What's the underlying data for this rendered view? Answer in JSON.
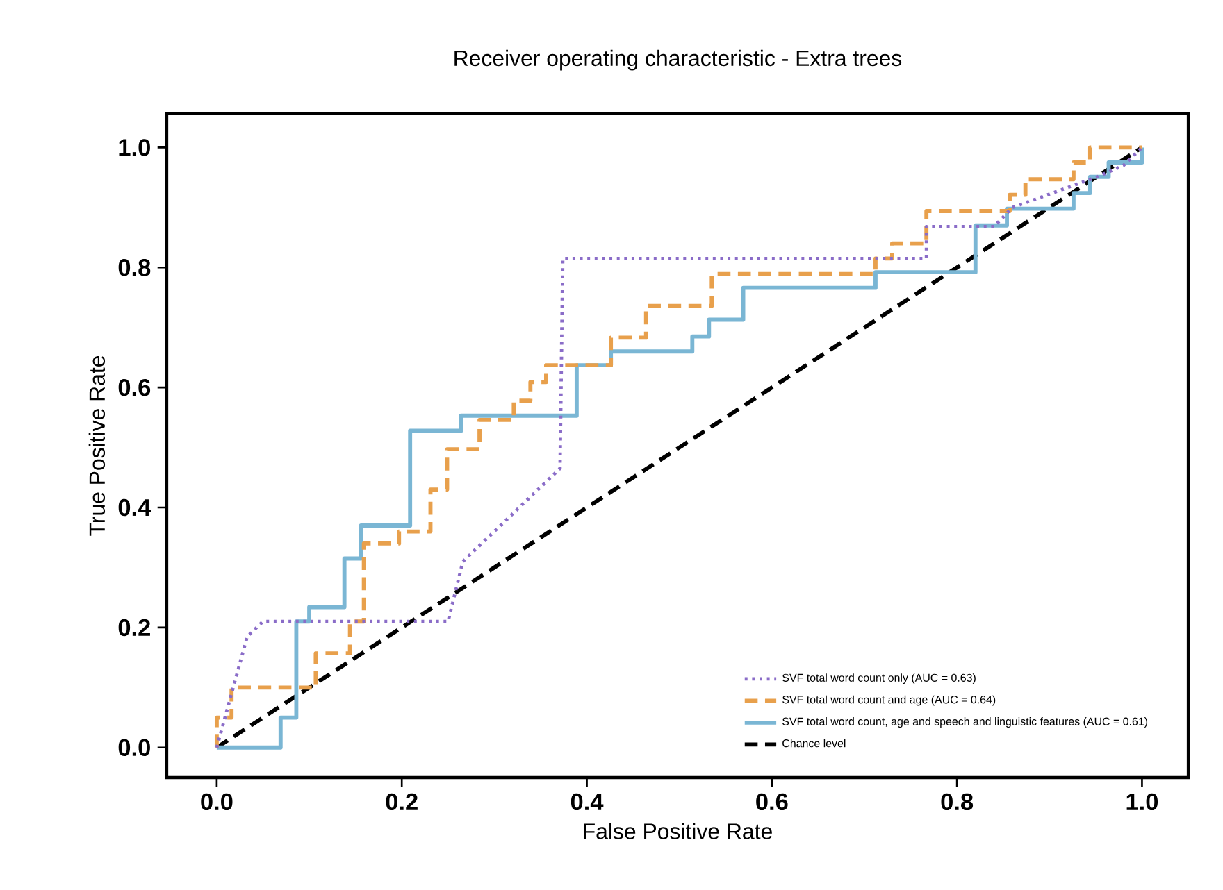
{
  "chart_data": {
    "type": "line",
    "title": "Receiver operating characteristic - Extra trees",
    "xlabel": "False Positive Rate",
    "ylabel": "True Positive Rate",
    "xlim": [
      -0.054,
      1.05
    ],
    "ylim": [
      -0.05,
      1.056
    ],
    "xticks": [
      {
        "value": 0,
        "label": "0.0"
      },
      {
        "value": 0.2,
        "label": "0.2"
      },
      {
        "value": 0.4,
        "label": "0.4"
      },
      {
        "value": 0.6,
        "label": "0.6"
      },
      {
        "value": 0.8,
        "label": "0.8"
      },
      {
        "value": 1,
        "label": "1.0"
      }
    ],
    "yticks": [
      {
        "value": 0,
        "label": "0.0"
      },
      {
        "value": 0.2,
        "label": "0.2"
      },
      {
        "value": 0.4,
        "label": "0.4"
      },
      {
        "value": 0.6,
        "label": "0.6"
      },
      {
        "value": 0.8,
        "label": "0.8"
      },
      {
        "value": 1,
        "label": "1.0"
      }
    ],
    "legend": "bottom right",
    "marker": "none",
    "grid": false,
    "series": [
      {
        "name": "SVF total word count only (AUC = 0.63)",
        "color": "#8a6cc8",
        "line_style": "dotted",
        "x": [
          0,
          0.033,
          0.05,
          0.25,
          0.25,
          0.266,
          0.371,
          0.374,
          0.767,
          0.767,
          0.84,
          0.86,
          0.95,
          0.98,
          1
        ],
        "values": [
          0,
          0.185,
          0.21,
          0.21,
          0.21,
          0.31,
          0.465,
          0.815,
          0.815,
          0.868,
          0.868,
          0.9,
          0.95,
          0.97,
          1
        ]
      },
      {
        "name": "SVF total word count and age (AUC = 0.64)",
        "color": "#e8a04c",
        "line_style": "dashed",
        "x": [
          0,
          0,
          0.016,
          0.016,
          0.107,
          0.107,
          0.144,
          0.144,
          0.159,
          0.159,
          0.197,
          0.197,
          0.231,
          0.231,
          0.249,
          0.249,
          0.284,
          0.284,
          0.321,
          0.321,
          0.339,
          0.339,
          0.356,
          0.356,
          0.426,
          0.426,
          0.464,
          0.464,
          0.535,
          0.535,
          0.712,
          0.712,
          0.73,
          0.73,
          0.767,
          0.767,
          0.857,
          0.857,
          0.874,
          0.874,
          0.926,
          0.926,
          0.944,
          0.944,
          1
        ],
        "values": [
          0,
          0.05,
          0.05,
          0.1,
          0.1,
          0.157,
          0.157,
          0.21,
          0.21,
          0.34,
          0.34,
          0.36,
          0.36,
          0.43,
          0.43,
          0.497,
          0.497,
          0.546,
          0.546,
          0.578,
          0.578,
          0.609,
          0.609,
          0.637,
          0.637,
          0.683,
          0.683,
          0.736,
          0.736,
          0.789,
          0.789,
          0.815,
          0.815,
          0.84,
          0.84,
          0.894,
          0.894,
          0.921,
          0.921,
          0.947,
          0.947,
          0.975,
          0.975,
          1,
          1
        ]
      },
      {
        "name": "SVF total word count, age and speech and linguistic features (AUC = 0.61)",
        "color": "#7ab6d4",
        "line_style": "solid",
        "x": [
          0,
          0.069,
          0.069,
          0.086,
          0.086,
          0.1,
          0.1,
          0.138,
          0.138,
          0.156,
          0.156,
          0.209,
          0.209,
          0.264,
          0.264,
          0.389,
          0.389,
          0.426,
          0.426,
          0.514,
          0.514,
          0.532,
          0.532,
          0.569,
          0.569,
          0.712,
          0.712,
          0.82,
          0.82,
          0.854,
          0.854,
          0.926,
          0.926,
          0.944,
          0.944,
          0.964,
          0.964,
          1,
          1
        ],
        "values": [
          0,
          0,
          0.05,
          0.05,
          0.21,
          0.21,
          0.234,
          0.234,
          0.315,
          0.315,
          0.37,
          0.37,
          0.528,
          0.528,
          0.553,
          0.553,
          0.637,
          0.637,
          0.66,
          0.66,
          0.685,
          0.685,
          0.713,
          0.713,
          0.766,
          0.766,
          0.792,
          0.792,
          0.87,
          0.87,
          0.898,
          0.898,
          0.924,
          0.924,
          0.951,
          0.951,
          0.975,
          0.975,
          1
        ]
      },
      {
        "name": "Chance level",
        "color": "#000000",
        "line_style": "dashed",
        "x": [
          0,
          1
        ],
        "values": [
          0,
          1
        ]
      }
    ]
  }
}
